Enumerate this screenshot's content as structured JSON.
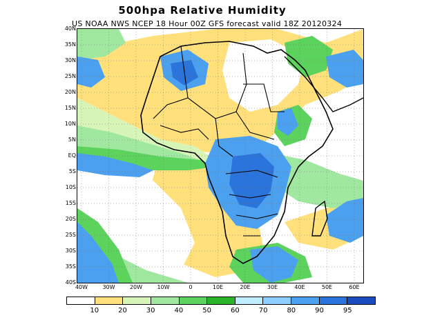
{
  "title": "500hpa Relative Humidity",
  "subtitle": "US NOAA NWS NCEP 18 Hour 00Z GFS forecast valid 18Z 20120324",
  "lat_labels": [
    "40N",
    "35N",
    "30N",
    "25N",
    "20N",
    "15N",
    "10N",
    "5N",
    "EQ",
    "5S",
    "10S",
    "15S",
    "20S",
    "25S",
    "30S",
    "35S",
    "40S"
  ],
  "lon_labels": [
    "40W",
    "30W",
    "20W",
    "10W",
    "0",
    "10E",
    "20E",
    "30E",
    "40E",
    "50E",
    "60E"
  ],
  "colorbar": {
    "labels": [
      "10",
      "20",
      "30",
      "40",
      "50",
      "60",
      "70",
      "80",
      "90",
      "95"
    ],
    "colors": [
      "#ffffff",
      "#ffe07a",
      "#d8f5b8",
      "#a0e8a0",
      "#5cd35c",
      "#28b428",
      "#bfeeff",
      "#8ccfff",
      "#4ca0f0",
      "#2a74dc",
      "#1a4cc0"
    ]
  },
  "map_colors": {
    "white": "#ffffff",
    "yellow": "#ffe07a",
    "pale_green": "#d8f5b8",
    "light_green": "#a0e8a0",
    "green": "#5cd35c",
    "dark_green": "#28b428",
    "light_blue": "#8ccfff",
    "blue": "#4ca0f0",
    "deep_blue": "#2a74dc"
  }
}
